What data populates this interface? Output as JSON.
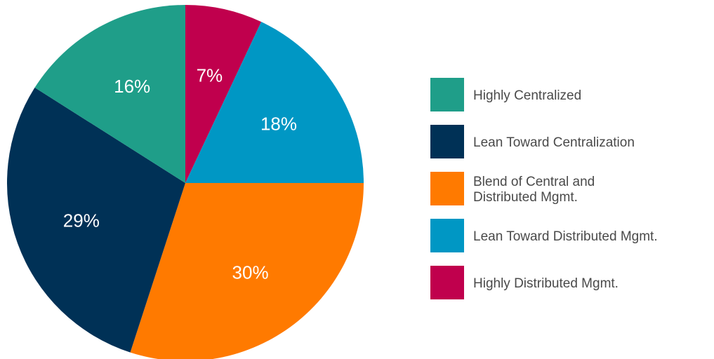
{
  "chart_data": {
    "type": "pie",
    "title": "",
    "legend_position": "right",
    "start_angle_deg": 0,
    "direction": "clockwise",
    "slices": [
      {
        "name": "Highly Distributed Mgmt.",
        "lines": [
          "Highly Distributed Mgmt."
        ],
        "value": 7,
        "label": "7%",
        "color": "#c0004d"
      },
      {
        "name": "Lean Toward Distributed Mgmt.",
        "lines": [
          "Lean Toward Distributed Mgmt."
        ],
        "value": 18,
        "label": "18%",
        "color": "#0097c4"
      },
      {
        "name": "Blend of Central and Distributed Mgmt.",
        "lines": [
          "Blend of Central and",
          "Distributed Mgmt."
        ],
        "value": 30,
        "label": "30%",
        "color": "#ff7a00"
      },
      {
        "name": "Lean Toward Centralization",
        "lines": [
          "Lean Toward Centralization"
        ],
        "value": 29,
        "label": "29%",
        "color": "#003156"
      },
      {
        "name": "Highly Centralized",
        "lines": [
          "Highly Centralized"
        ],
        "value": 16,
        "label": "16%",
        "color": "#1f9e89"
      }
    ],
    "legend_order": [
      "Highly Centralized",
      "Lean Toward Centralization",
      "Blend of Central and Distributed Mgmt.",
      "Lean Toward Distributed Mgmt.",
      "Highly Distributed Mgmt."
    ]
  }
}
